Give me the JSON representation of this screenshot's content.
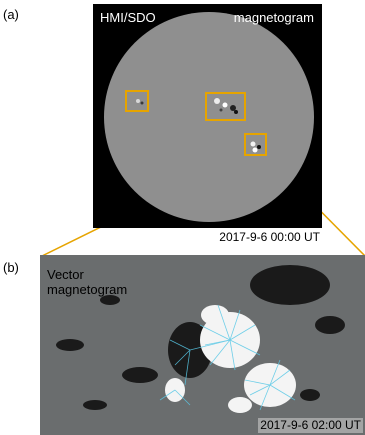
{
  "panels": {
    "a": {
      "label": "(a)",
      "instrument": "HMI/SDO",
      "product": "magnetogram",
      "timestamp": "2017-9-6 00:00 UT"
    },
    "b": {
      "label": "(b)",
      "product": "Vector magnetogram",
      "timestamp": "2017-9-6 02:00 UT"
    }
  },
  "colors": {
    "box": "#e6a400",
    "disk": "#8f8f8f",
    "vectors": "#58c8e6",
    "background": "#000000"
  }
}
